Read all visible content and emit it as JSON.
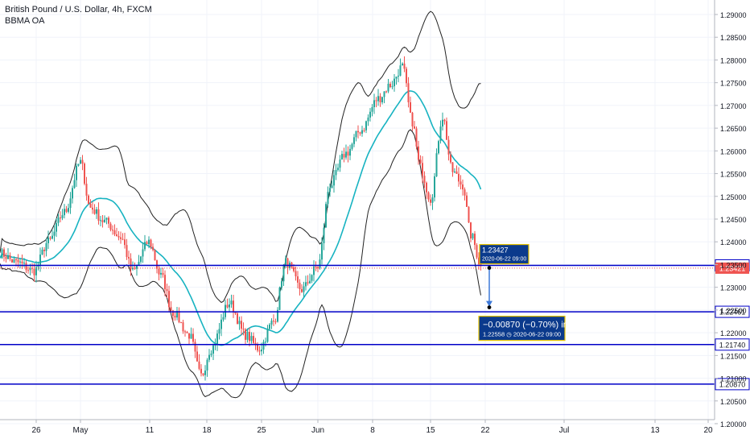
{
  "header": {
    "title": "British Pound / U.S. Dollar, 4h, FXCM",
    "indicator": "BBMA OA"
  },
  "colors": {
    "background": "#ffffff",
    "grid": "#f0f3fa",
    "bull": "#26a69a",
    "bear": "#ef5350",
    "band": "#222222",
    "ma": "#17b3c1",
    "levels": "#0000c8",
    "price_marker": "#ef5350",
    "measure": "#3c78d8",
    "label_bg": "#0b3a8c",
    "label_border": "#e8c400"
  },
  "chart_data": {
    "type": "candlestick",
    "y_axis": {
      "ylim": [
        1.2,
        1.29
      ],
      "ticks": [
        "1.29000",
        "1.28500",
        "1.28000",
        "1.27500",
        "1.27000",
        "1.26500",
        "1.26000",
        "1.25500",
        "1.25000",
        "1.24500",
        "1.24000",
        "1.23500",
        "1.23000",
        "1.22500",
        "1.22000",
        "1.21500",
        "1.21000",
        "1.20500",
        "1.20000"
      ]
    },
    "x_axis": {
      "ticks": [
        "26",
        "May",
        "11",
        "18",
        "25",
        "Jun",
        "8",
        "15",
        "22",
        "Jul",
        "13",
        "20"
      ]
    },
    "horizontal_levels": [
      {
        "value": 1.23482,
        "label": "1.23482"
      },
      {
        "value": 1.22461,
        "label": "1.22461"
      },
      {
        "value": 1.2174,
        "label": "1.21740"
      },
      {
        "value": 1.2087,
        "label": "1.20870"
      }
    ],
    "current_price": {
      "value": 1.23421,
      "label": "1.23421"
    },
    "point_label": {
      "price": "1.23427",
      "time": "2020-06-22 09:00"
    },
    "measure": {
      "from": 1.23427,
      "to": 1.22558,
      "change": "−0.00870 (−0.70%) in",
      "detail": "1.22558 ◷ 2020-06-22  09:00"
    },
    "anchors": [
      {
        "x": 0,
        "close": 1.2375
      },
      {
        "x": 20,
        "close": 1.2355
      },
      {
        "x": 42,
        "close": 1.2336
      },
      {
        "x": 60,
        "close": 1.24
      },
      {
        "x": 80,
        "close": 1.2465
      },
      {
        "x": 100,
        "close": 1.2575
      },
      {
        "x": 112,
        "close": 1.2475
      },
      {
        "x": 130,
        "close": 1.2445
      },
      {
        "x": 150,
        "close": 1.241
      },
      {
        "x": 165,
        "close": 1.2335
      },
      {
        "x": 185,
        "close": 1.24
      },
      {
        "x": 200,
        "close": 1.2325
      },
      {
        "x": 215,
        "close": 1.2245
      },
      {
        "x": 235,
        "close": 1.2195
      },
      {
        "x": 250,
        "close": 1.2105
      },
      {
        "x": 262,
        "close": 1.2165
      },
      {
        "x": 285,
        "close": 1.2265
      },
      {
        "x": 305,
        "close": 1.2195
      },
      {
        "x": 322,
        "close": 1.2165
      },
      {
        "x": 340,
        "close": 1.2225
      },
      {
        "x": 355,
        "close": 1.2355
      },
      {
        "x": 375,
        "close": 1.2295
      },
      {
        "x": 395,
        "close": 1.2345
      },
      {
        "x": 410,
        "close": 1.2525
      },
      {
        "x": 430,
        "close": 1.2595
      },
      {
        "x": 448,
        "close": 1.2645
      },
      {
        "x": 470,
        "close": 1.2715
      },
      {
        "x": 485,
        "close": 1.2745
      },
      {
        "x": 500,
        "close": 1.2785
      },
      {
        "x": 512,
        "close": 1.2665
      },
      {
        "x": 522,
        "close": 1.2565
      },
      {
        "x": 535,
        "close": 1.2495
      },
      {
        "x": 550,
        "close": 1.2675
      },
      {
        "x": 562,
        "close": 1.2555
      },
      {
        "x": 575,
        "close": 1.2525
      },
      {
        "x": 585,
        "close": 1.2415
      },
      {
        "x": 598,
        "close": 1.2348
      }
    ]
  }
}
